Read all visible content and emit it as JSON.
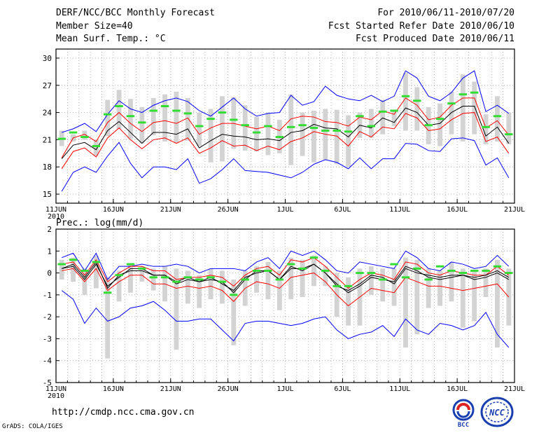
{
  "header": {
    "title": "DERF/NCC/BCC Monthly Forecast",
    "member_size": "Member Size=40",
    "variable": "Mean Surf. Temp.: °C",
    "period": "For 2010/06/11-2010/07/20",
    "refer_date": "Fcst Started Refer Date 2010/06/10",
    "produced_date": "Fcst Produced Date 2010/06/11"
  },
  "footer": {
    "url": "http://cmdp.ncc.cma.gov.cn",
    "credit": "GrADS: COLA/IGES",
    "logo1_text": "BCC",
    "logo2_text": "NCC"
  },
  "colors": {
    "max_min": "#0000ff",
    "spread": "#ff0000",
    "mean": "#000000",
    "box": "#d3d3d3",
    "observed": "#33dd33"
  },
  "chart_data": [
    {
      "type": "line",
      "title": "Mean Surf. Temp.: °C",
      "xlabel": "",
      "ylabel": "°C",
      "ylim": [
        14,
        31
      ],
      "yticks": [
        15,
        18,
        21,
        24,
        27,
        30
      ],
      "grid": true,
      "xlim": [
        0,
        40
      ],
      "xticks": [
        {
          "x": 0,
          "label": "11JUN",
          "sublabel": "2010"
        },
        {
          "x": 5,
          "label": "16JUN"
        },
        {
          "x": 10,
          "label": "21JUN"
        },
        {
          "x": 15,
          "label": "26JUN"
        },
        {
          "x": 20,
          "label": "1JUL"
        },
        {
          "x": 25,
          "label": "6JUL"
        },
        {
          "x": 30,
          "label": "11JUL"
        },
        {
          "x": 35,
          "label": "16JUL"
        },
        {
          "x": 40,
          "label": "21JUL"
        }
      ],
      "days": [
        0.5,
        1.5,
        2.5,
        3.5,
        4.5,
        5.5,
        6.5,
        7.5,
        8.5,
        9.5,
        10.5,
        11.5,
        12.5,
        13.5,
        14.5,
        15.5,
        16.5,
        17.5,
        18.5,
        19.5,
        20.5,
        21.5,
        22.5,
        23.5,
        24.5,
        25.5,
        26.5,
        27.5,
        28.5,
        29.5,
        30.5,
        31.5,
        32.5,
        33.5,
        34.5,
        35.5,
        36.5,
        37.5,
        38.5,
        39.5
      ],
      "series": [
        {
          "name": "max",
          "values": [
            21.8,
            22.2,
            22.8,
            21.9,
            23.8,
            25.3,
            24.4,
            24.0,
            24.8,
            25.3,
            25.6,
            25.2,
            24.2,
            23.6,
            24.6,
            25.6,
            24.4,
            23.6,
            23.9,
            24.0,
            25.9,
            24.8,
            25.2,
            26.9,
            25.9,
            25.5,
            25.3,
            25.9,
            25.2,
            25.8,
            28.6,
            27.8,
            25.8,
            25.3,
            26.2,
            27.8,
            28.6,
            24.1,
            24.8,
            23.9
          ]
        },
        {
          "name": "upper",
          "values": [
            19.0,
            21.2,
            21.6,
            20.8,
            22.9,
            24.0,
            22.8,
            21.9,
            22.9,
            23.1,
            22.8,
            23.4,
            21.6,
            22.3,
            22.8,
            22.8,
            22.5,
            22.2,
            22.5,
            22.0,
            23.3,
            23.6,
            23.5,
            23.0,
            22.9,
            22.5,
            23.5,
            23.2,
            24.2,
            23.8,
            25.6,
            24.8,
            23.2,
            23.5,
            24.8,
            25.6,
            25.6,
            22.3,
            23.1,
            21.5
          ]
        },
        {
          "name": "mean",
          "values": [
            18.9,
            20.4,
            20.7,
            19.9,
            22.0,
            23.0,
            21.8,
            20.6,
            21.8,
            21.8,
            21.6,
            22.2,
            20.1,
            20.9,
            21.6,
            21.4,
            21.3,
            21.0,
            21.1,
            20.9,
            21.8,
            22.0,
            22.7,
            22.3,
            22.2,
            21.3,
            22.6,
            22.3,
            23.4,
            22.9,
            24.5,
            24.0,
            22.6,
            22.8,
            24.0,
            24.7,
            24.7,
            21.4,
            22.4,
            20.6
          ]
        },
        {
          "name": "lower",
          "values": [
            17.8,
            19.7,
            20.1,
            19.1,
            21.2,
            22.3,
            21.0,
            20.0,
            21.0,
            21.2,
            20.6,
            21.2,
            19.5,
            20.1,
            20.9,
            20.3,
            20.4,
            19.8,
            20.3,
            19.9,
            20.8,
            21.2,
            21.9,
            21.6,
            21.4,
            20.3,
            21.9,
            21.3,
            22.4,
            22.2,
            23.9,
            23.4,
            22.0,
            22.2,
            23.2,
            23.9,
            24.0,
            20.8,
            21.3,
            19.5
          ]
        },
        {
          "name": "min",
          "values": [
            15.3,
            17.4,
            18.0,
            17.4,
            19.2,
            20.7,
            18.4,
            16.8,
            18.0,
            18.0,
            17.7,
            18.9,
            16.2,
            16.7,
            17.7,
            18.9,
            17.6,
            17.5,
            17.4,
            17.1,
            16.8,
            17.4,
            18.3,
            18.8,
            18.5,
            17.8,
            19.0,
            17.8,
            18.9,
            18.9,
            20.6,
            20.5,
            19.8,
            19.7,
            21.1,
            21.2,
            20.9,
            18.2,
            19.0,
            16.8
          ]
        }
      ],
      "box_low": [
        20.3,
        20.8,
        21.0,
        19.2,
        21.4,
        22.2,
        21.1,
        20.6,
        21.5,
        20.8,
        20.6,
        20.9,
        20.3,
        18.5,
        18.6,
        20.0,
        19.8,
        19.7,
        19.3,
        19.5,
        18.2,
        19.2,
        18.5,
        18.8,
        18.3,
        18.0,
        21.2,
        21.2,
        21.6,
        22.5,
        22.0,
        22.0,
        20.5,
        20.3,
        21.6,
        20.8,
        21.6,
        20.5,
        20.8,
        20.5
      ],
      "box_high": [
        22.0,
        21.6,
        22.0,
        21.0,
        25.4,
        26.5,
        25.5,
        24.6,
        25.6,
        26.0,
        26.3,
        25.6,
        24.0,
        24.4,
        25.8,
        25.7,
        24.8,
        23.5,
        24.0,
        23.2,
        26.0,
        24.0,
        24.2,
        24.4,
        24.3,
        23.7,
        24.0,
        24.4,
        25.4,
        24.2,
        28.4,
        26.8,
        24.6,
        25.0,
        26.3,
        28.2,
        27.4,
        23.8,
        25.8,
        24.0
      ],
      "observed": [
        21.1,
        21.8,
        21.3,
        20.3,
        23.8,
        24.7,
        23.6,
        22.9,
        24.2,
        24.7,
        24.2,
        23.9,
        22.5,
        23.3,
        24.0,
        23.2,
        22.6,
        21.8,
        22.5,
        21.3,
        22.4,
        22.6,
        22.3,
        22.0,
        22.0,
        21.9,
        23.6,
        22.5,
        24.1,
        24.2,
        25.8,
        25.3,
        22.6,
        23.3,
        25.0,
        26.0,
        26.2,
        22.4,
        23.6,
        21.6
      ]
    },
    {
      "type": "line",
      "title": "Prec.: log(mm/d)",
      "xlabel": "",
      "ylabel": "log(mm/d)",
      "ylim": [
        -5,
        2
      ],
      "yticks": [
        -5,
        -4,
        -3,
        -2,
        -1,
        0,
        1,
        2
      ],
      "grid": true,
      "xlim": [
        0,
        40
      ],
      "xticks": [
        {
          "x": 0,
          "label": "11JUN",
          "sublabel": "2010"
        },
        {
          "x": 5,
          "label": "16JUN"
        },
        {
          "x": 10,
          "label": "21JUN"
        },
        {
          "x": 15,
          "label": "26JUN"
        },
        {
          "x": 20,
          "label": "1JUL"
        },
        {
          "x": 25,
          "label": "6JUL"
        },
        {
          "x": 30,
          "label": "11JUL"
        },
        {
          "x": 35,
          "label": "16JUL"
        },
        {
          "x": 40,
          "label": "21JUL"
        }
      ],
      "days": [
        0.5,
        1.5,
        2.5,
        3.5,
        4.5,
        5.5,
        6.5,
        7.5,
        8.5,
        9.5,
        10.5,
        11.5,
        12.5,
        13.5,
        14.5,
        15.5,
        16.5,
        17.5,
        18.5,
        19.5,
        20.5,
        21.5,
        22.5,
        23.5,
        24.5,
        25.5,
        26.5,
        27.5,
        28.5,
        29.5,
        30.5,
        31.5,
        32.5,
        33.5,
        34.5,
        35.5,
        36.5,
        37.5,
        38.5,
        39.5
      ],
      "series": [
        {
          "name": "max",
          "values": [
            0.7,
            0.9,
            0.1,
            0.9,
            -0.3,
            0.3,
            0.3,
            0.4,
            0.3,
            0.3,
            0.4,
            0.3,
            0.0,
            0.2,
            0.2,
            0.2,
            0.1,
            0.5,
            0.7,
            0.2,
            1.0,
            0.8,
            1.0,
            0.6,
            0.1,
            0.0,
            0.5,
            0.4,
            0.3,
            0.2,
            1.0,
            0.7,
            0.2,
            0.1,
            0.5,
            0.4,
            0.2,
            0.3,
            0.8,
            0.3
          ]
        },
        {
          "name": "upper",
          "values": [
            0.4,
            0.5,
            -0.1,
            0.6,
            -0.4,
            0.0,
            0.3,
            0.3,
            0.1,
            0.1,
            -0.3,
            -0.2,
            -0.2,
            -0.1,
            -0.2,
            -0.6,
            -0.1,
            0.2,
            0.3,
            -0.1,
            0.6,
            0.5,
            0.7,
            0.3,
            -0.2,
            -0.7,
            -0.3,
            0.0,
            -0.1,
            -0.3,
            0.5,
            0.4,
            0.0,
            -0.1,
            0.1,
            0.0,
            -0.1,
            -0.1,
            0.3,
            -0.1
          ]
        },
        {
          "name": "mean",
          "values": [
            0.2,
            0.3,
            -0.3,
            0.4,
            -0.6,
            -0.2,
            0.2,
            0.2,
            -0.1,
            -0.1,
            -0.5,
            -0.3,
            -0.4,
            -0.3,
            -0.4,
            -0.9,
            -0.3,
            0.1,
            0.1,
            -0.3,
            0.2,
            0.2,
            0.4,
            0.0,
            -0.5,
            -0.9,
            -0.6,
            -0.2,
            -0.3,
            -0.4,
            0.3,
            0.1,
            -0.2,
            -0.3,
            -0.2,
            -0.1,
            -0.3,
            -0.2,
            0.0,
            -0.3
          ]
        },
        {
          "name": "lower",
          "values": [
            0.1,
            0.2,
            -0.4,
            0.2,
            -0.8,
            -0.4,
            -0.1,
            -0.1,
            -0.5,
            -0.5,
            -0.7,
            -0.6,
            -0.7,
            -0.6,
            -0.8,
            -1.3,
            -0.7,
            -0.4,
            -0.5,
            -0.7,
            -0.2,
            -0.1,
            0.0,
            -0.4,
            -1.0,
            -1.5,
            -1.1,
            -0.7,
            -0.8,
            -0.9,
            -0.2,
            -0.4,
            -0.6,
            -0.6,
            -0.7,
            -0.8,
            -0.7,
            -0.6,
            -0.5,
            -1.1
          ]
        },
        {
          "name": "min",
          "values": [
            -0.8,
            -1.2,
            -2.3,
            -1.6,
            -2.2,
            -2.0,
            -1.6,
            -1.5,
            -1.3,
            -1.7,
            -2.2,
            -2.2,
            -2.1,
            -2.1,
            -2.6,
            -3.1,
            -2.3,
            -2.2,
            -2.2,
            -2.3,
            -2.4,
            -2.3,
            -2.1,
            -2.0,
            -2.6,
            -3.0,
            -2.8,
            -2.7,
            -2.4,
            -2.9,
            -2.1,
            -2.6,
            -2.8,
            -2.3,
            -2.4,
            -2.6,
            -2.4,
            -1.8,
            -2.8,
            -3.4
          ]
        },
        {
          "name": "median",
          "values": [
            0.2,
            0.4,
            -0.2,
            0.5,
            -0.7,
            -0.1,
            0.1,
            0.1,
            -0.1,
            -0.1,
            -0.4,
            -0.2,
            -0.4,
            -0.2,
            -0.5,
            -0.8,
            -0.2,
            0.0,
            0.1,
            -0.3,
            0.3,
            0.1,
            0.4,
            0.0,
            -0.6,
            -0.8,
            -0.5,
            -0.1,
            -0.2,
            -0.5,
            0.2,
            0.0,
            -0.1,
            -0.2,
            -0.1,
            -0.1,
            -0.2,
            -0.1,
            0.1,
            -0.2
          ]
        }
      ],
      "box_low": [
        -0.3,
        -0.4,
        -1.0,
        -0.7,
        -3.9,
        -1.3,
        -0.9,
        -0.4,
        -0.8,
        -1.3,
        -3.5,
        -1.4,
        -1.6,
        -1.2,
        -1.4,
        -3.3,
        -1.5,
        -0.9,
        -1.2,
        -1.7,
        -1.2,
        -1.1,
        -0.6,
        -0.6,
        -2.0,
        -2.4,
        -2.4,
        -1.0,
        -1.3,
        -1.5,
        -3.4,
        -2.8,
        -1.6,
        -1.5,
        -1.3,
        -2.5,
        -2.2,
        -1.1,
        -3.4,
        -2.4
      ],
      "box_high": [
        0.6,
        0.7,
        0.2,
        0.8,
        -0.2,
        0.1,
        0.4,
        0.3,
        0.2,
        0.3,
        0.2,
        0.1,
        -0.1,
        0.2,
        0.1,
        -0.3,
        0.1,
        0.3,
        0.5,
        0.1,
        0.7,
        0.6,
        0.8,
        0.3,
        0.0,
        -0.2,
        0.2,
        0.3,
        0.2,
        0.2,
        0.7,
        0.6,
        0.2,
        0.1,
        0.5,
        0.2,
        0.1,
        0.2,
        0.6,
        0.2
      ],
      "observed": [
        0.4,
        0.6,
        0.1,
        0.5,
        -0.9,
        -0.1,
        0.4,
        0.2,
        -0.2,
        -0.2,
        -0.4,
        -0.2,
        -0.3,
        -0.2,
        -0.4,
        -1.0,
        -0.3,
        0.1,
        0.1,
        -0.3,
        0.4,
        0.2,
        0.7,
        0.1,
        -0.6,
        -0.6,
        0.0,
        0.0,
        -0.3,
        0.4,
        -0.2,
        0.2,
        -0.3,
        0.3,
        0.1,
        0.0,
        0.1,
        0.1,
        0.3,
        0.0
      ]
    }
  ]
}
